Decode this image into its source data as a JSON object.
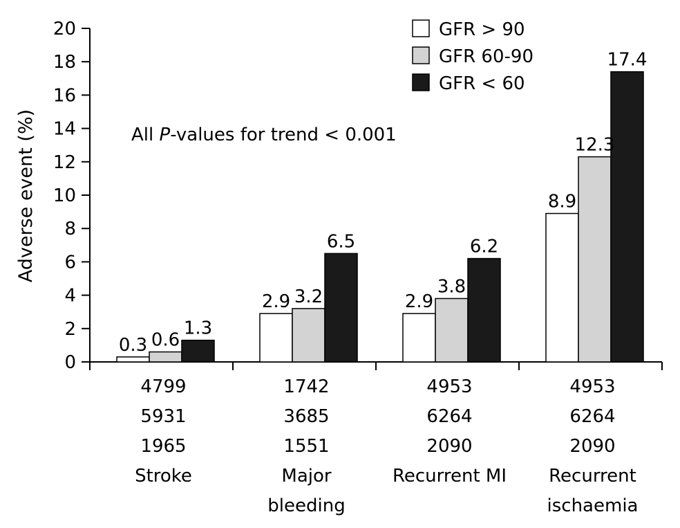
{
  "chart_data": {
    "type": "bar",
    "title": "",
    "xlabel": "",
    "ylabel": "Adverse event (%)",
    "ylim": [
      0,
      20
    ],
    "yticks": [
      0,
      2,
      4,
      6,
      8,
      10,
      12,
      14,
      16,
      18,
      20
    ],
    "grid": false,
    "legend_position": "top-right",
    "annotation": {
      "prefix": "All ",
      "italic": "P",
      "suffix": "-values for trend < 0.001"
    },
    "categories": [
      {
        "label_lines": [
          "Stroke"
        ],
        "counts": [
          "4799",
          "5931",
          "1965"
        ]
      },
      {
        "label_lines": [
          "Major",
          "bleeding"
        ],
        "counts": [
          "1742",
          "3685",
          "1551"
        ]
      },
      {
        "label_lines": [
          "Recurrent MI"
        ],
        "counts": [
          "4953",
          "6264",
          "2090"
        ]
      },
      {
        "label_lines": [
          "Recurrent",
          "ischaemia"
        ],
        "counts": [
          "4953",
          "6264",
          "2090"
        ]
      }
    ],
    "series": [
      {
        "name": "GFR > 90",
        "color": "#ffffff",
        "values": [
          0.3,
          2.9,
          2.9,
          8.9
        ],
        "value_labels": [
          "0.3",
          "2.9",
          "2.9",
          "8.9"
        ]
      },
      {
        "name": "GFR 60-90",
        "color": "#d3d3d3",
        "values": [
          0.6,
          3.2,
          3.8,
          12.3
        ],
        "value_labels": [
          "0.6",
          "3.2",
          "3.8",
          "12.3"
        ]
      },
      {
        "name": "GFR < 60",
        "color": "#1a1a1a",
        "values": [
          1.3,
          6.5,
          6.2,
          17.4
        ],
        "value_labels": [
          "1.3",
          "6.5",
          "6.2",
          "17.4"
        ]
      }
    ]
  }
}
